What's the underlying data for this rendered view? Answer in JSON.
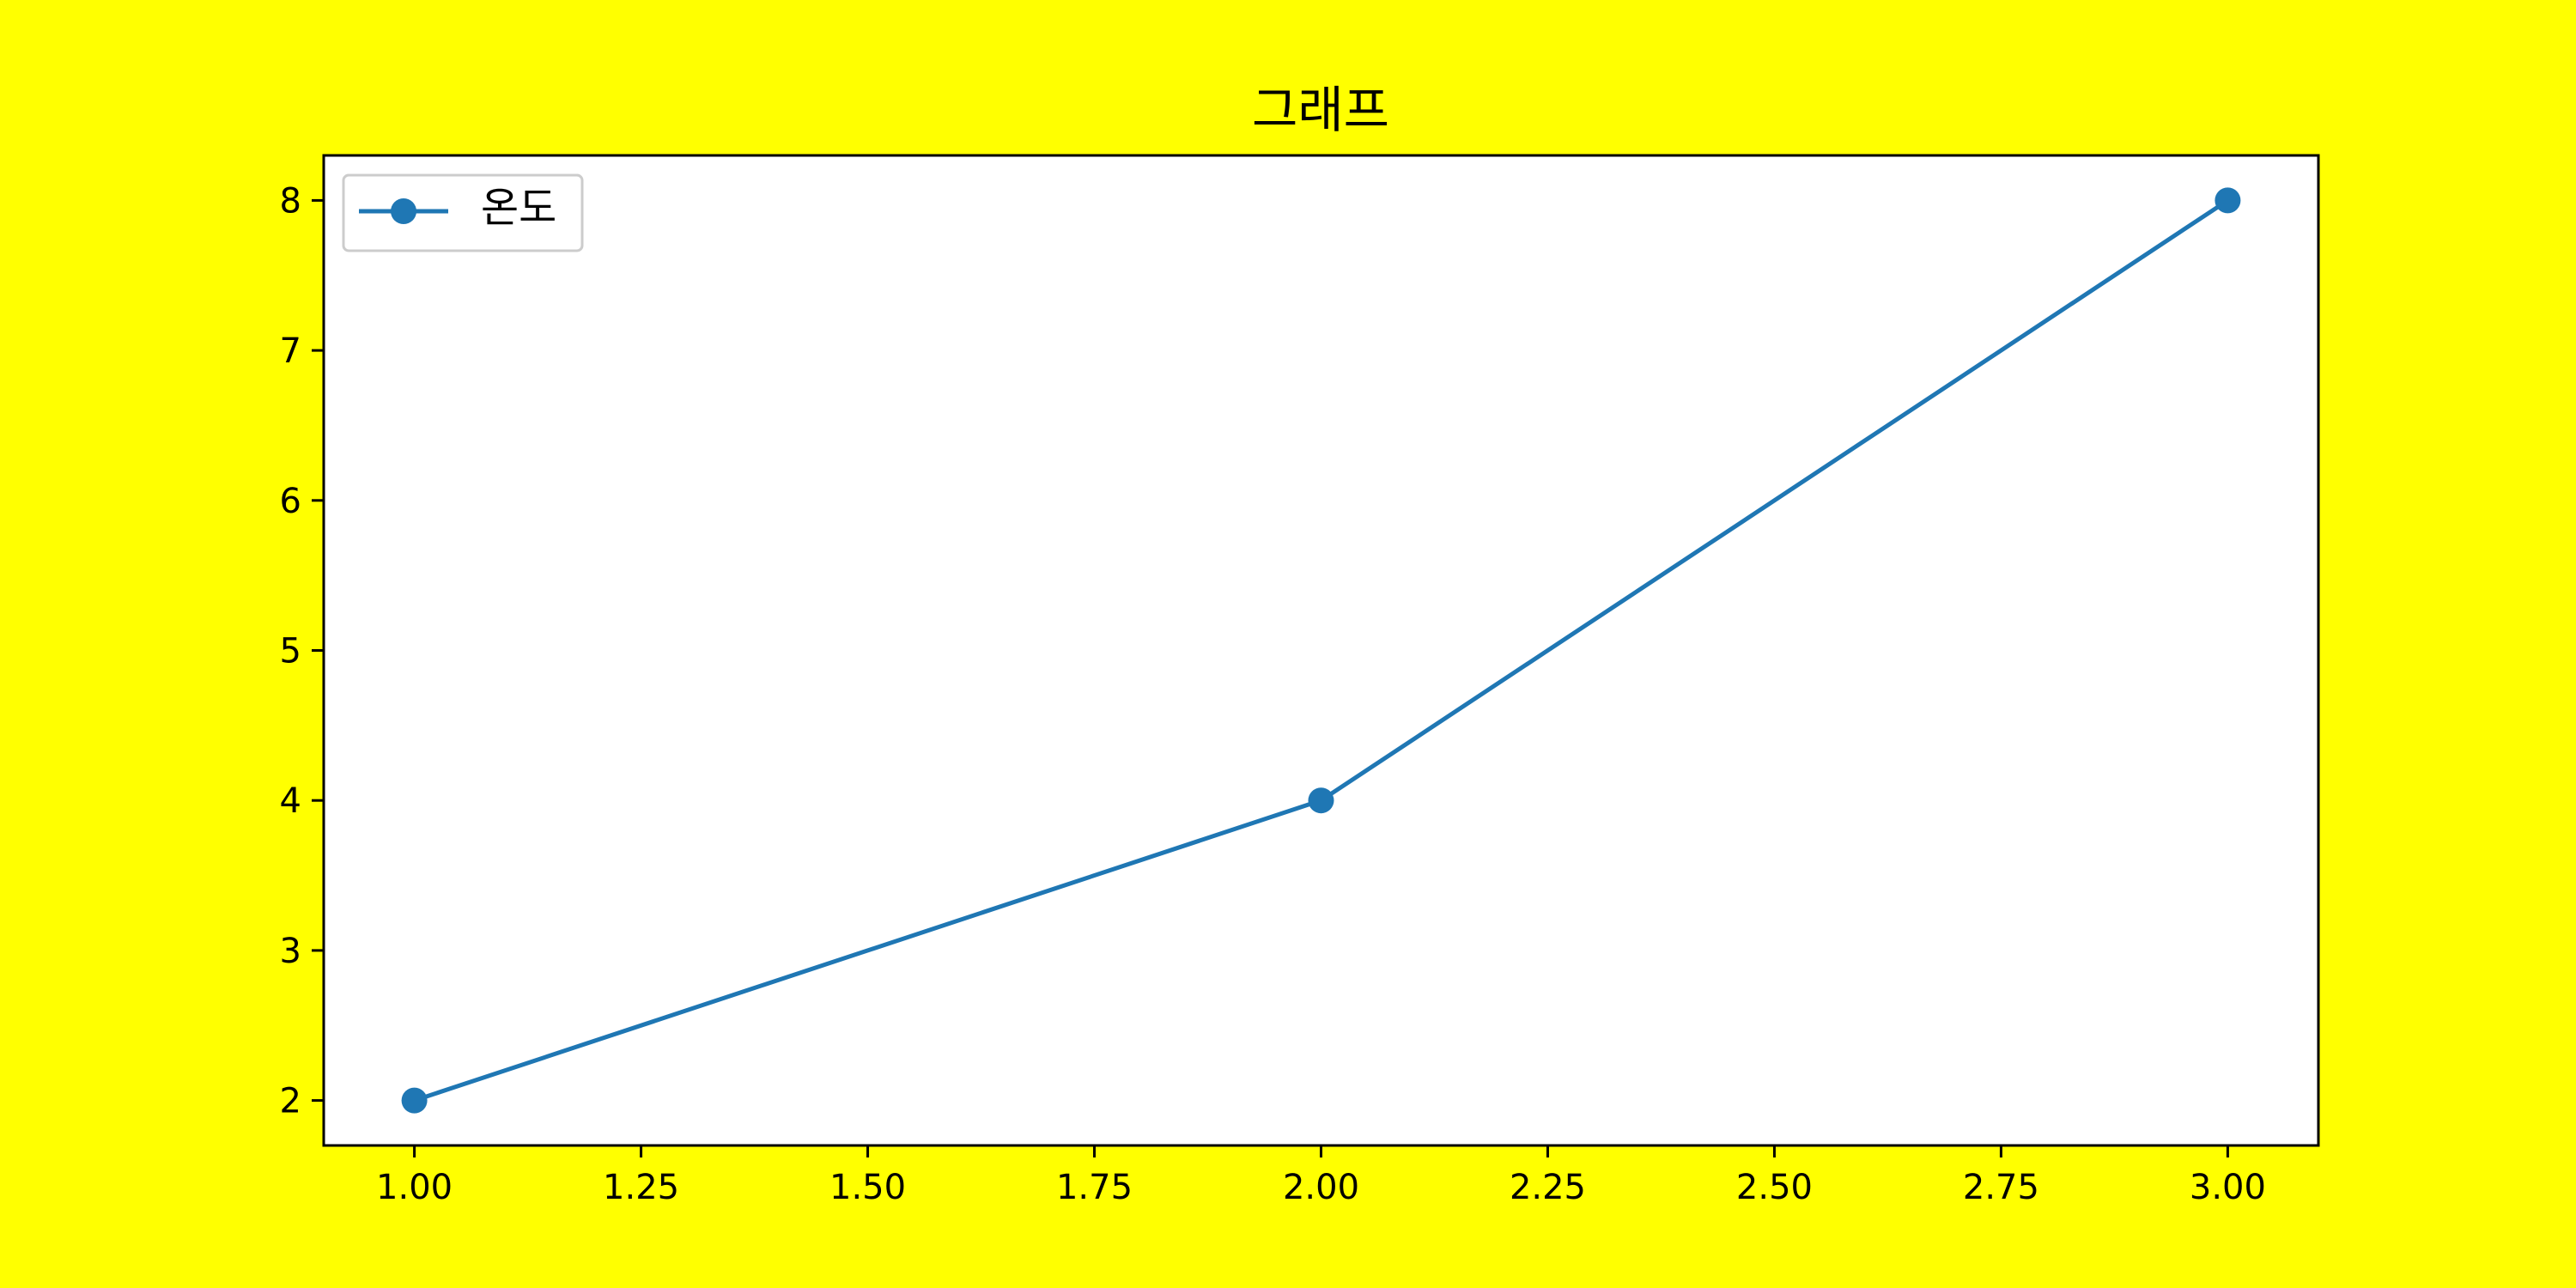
{
  "figure": {
    "background_color": "#ffff00",
    "plot_background_color": "#ffffff"
  },
  "chart_data": {
    "type": "line",
    "title": "그래프",
    "xlabel": "",
    "ylabel": "",
    "x": [
      1.0,
      2.0,
      3.0
    ],
    "series": [
      {
        "name": "온도",
        "values": [
          2,
          4,
          8
        ],
        "color": "#1f77b4",
        "marker": "circle"
      }
    ],
    "xlim": [
      0.9,
      3.1
    ],
    "ylim": [
      1.7,
      8.3
    ],
    "xticks": [
      "1.00",
      "1.25",
      "1.50",
      "1.75",
      "2.00",
      "2.25",
      "2.50",
      "2.75",
      "3.00"
    ],
    "yticks": [
      "2",
      "3",
      "4",
      "5",
      "6",
      "7",
      "8"
    ],
    "grid": false,
    "legend_position": "upper left"
  }
}
